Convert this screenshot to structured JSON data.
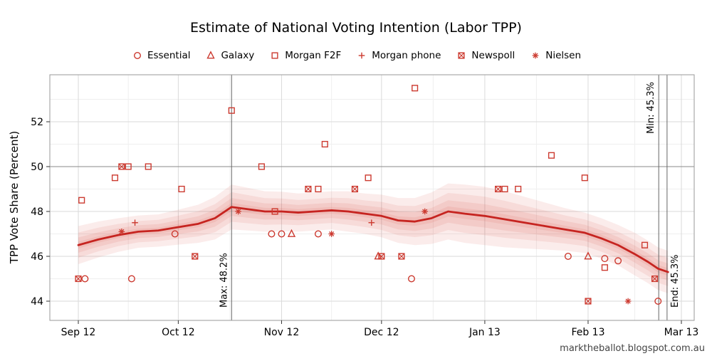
{
  "page": {
    "watermark": "marktheballot.blogspot.com.au"
  },
  "chart_data": {
    "type": "scatter",
    "title": "Estimate of National Voting Intention (Labor TPP)",
    "ylabel": "TPP Vote Share (Percent)",
    "x_axis": {
      "tick_labels": [
        "Sep 12",
        "Oct 12",
        "Nov 12",
        "Dec 12",
        "Jan 13",
        "Feb 13",
        "Mar 13"
      ],
      "tick_days": [
        0,
        30,
        61,
        91,
        122,
        153,
        181
      ],
      "minor_days": [
        15,
        45.5,
        76,
        106.5,
        137.5,
        167
      ]
    },
    "y_axis": {
      "ticks": [
        44,
        46,
        48,
        50,
        52
      ],
      "minor": [
        45,
        47,
        49,
        51,
        53
      ]
    },
    "reference_line_y": 50,
    "annotations": [
      {
        "day": 46,
        "label": "Max: 48.2%",
        "label_pos": "bottom-left"
      },
      {
        "day": 174.2,
        "label": "Min: 45.3%",
        "label_pos": "top-left"
      },
      {
        "day": 176.7,
        "label": "End: 45.3%",
        "label_pos": "bottom-right"
      }
    ],
    "trend": [
      [
        0,
        46.5,
        0.85
      ],
      [
        6,
        46.75,
        0.8
      ],
      [
        12,
        46.95,
        0.75
      ],
      [
        18,
        47.1,
        0.72
      ],
      [
        24,
        47.15,
        0.72
      ],
      [
        30,
        47.3,
        0.78
      ],
      [
        36,
        47.45,
        0.85
      ],
      [
        41,
        47.7,
        0.95
      ],
      [
        46,
        48.2,
        1.0
      ],
      [
        51,
        48.1,
        0.95
      ],
      [
        56,
        48.0,
        0.9
      ],
      [
        61,
        48.0,
        0.88
      ],
      [
        66,
        47.95,
        0.85
      ],
      [
        71,
        48.0,
        0.85
      ],
      [
        76,
        48.05,
        0.85
      ],
      [
        81,
        48.0,
        0.9
      ],
      [
        86,
        47.9,
        0.9
      ],
      [
        91,
        47.8,
        0.95
      ],
      [
        96,
        47.6,
        1.0
      ],
      [
        101,
        47.55,
        1.05
      ],
      [
        106,
        47.7,
        1.15
      ],
      [
        111,
        48.0,
        1.25
      ],
      [
        116,
        47.9,
        1.3
      ],
      [
        122,
        47.8,
        1.3
      ],
      [
        128,
        47.65,
        1.25
      ],
      [
        134,
        47.5,
        1.15
      ],
      [
        140,
        47.35,
        1.05
      ],
      [
        146,
        47.2,
        0.95
      ],
      [
        152,
        47.05,
        0.9
      ],
      [
        157,
        46.8,
        0.9
      ],
      [
        162,
        46.5,
        0.9
      ],
      [
        167,
        46.1,
        0.95
      ],
      [
        171,
        45.75,
        0.95
      ],
      [
        174,
        45.45,
        0.95
      ],
      [
        177,
        45.3,
        0.95
      ]
    ],
    "band_fractions": [
      1,
      0.66,
      0.4,
      0.18
    ],
    "series": [
      {
        "name": "Essential",
        "symbol": "circle",
        "points": [
          [
            2,
            45
          ],
          [
            16,
            45
          ],
          [
            29,
            47
          ],
          [
            58,
            47
          ],
          [
            61,
            47
          ],
          [
            72,
            47
          ],
          [
            100,
            45
          ],
          [
            147,
            46
          ],
          [
            158,
            45.9
          ],
          [
            162,
            45.8
          ],
          [
            174,
            44
          ]
        ]
      },
      {
        "name": "Galaxy",
        "symbol": "triangle",
        "points": [
          [
            64,
            47
          ],
          [
            90,
            46
          ],
          [
            153,
            46
          ]
        ]
      },
      {
        "name": "Morgan F2F",
        "symbol": "square",
        "points": [
          [
            1,
            48.5
          ],
          [
            11,
            49.5
          ],
          [
            15,
            50
          ],
          [
            21,
            50
          ],
          [
            31,
            49
          ],
          [
            46,
            52.5
          ],
          [
            55,
            50
          ],
          [
            59,
            48
          ],
          [
            72,
            49
          ],
          [
            74,
            51
          ],
          [
            87,
            49.5
          ],
          [
            101,
            53.5
          ],
          [
            128,
            49
          ],
          [
            132,
            49
          ],
          [
            142,
            50.5
          ],
          [
            152,
            49.5
          ],
          [
            158,
            45.5
          ],
          [
            170,
            46.5
          ]
        ]
      },
      {
        "name": "Morgan phone",
        "symbol": "plus",
        "points": [
          [
            17,
            47.5
          ],
          [
            88,
            47.5
          ]
        ]
      },
      {
        "name": "Newspoll",
        "symbol": "square-x",
        "points": [
          [
            0,
            45
          ],
          [
            13,
            50
          ],
          [
            35,
            46
          ],
          [
            69,
            49
          ],
          [
            83,
            49
          ],
          [
            91,
            46
          ],
          [
            97,
            46
          ],
          [
            126,
            49
          ],
          [
            153,
            44
          ],
          [
            173,
            45
          ]
        ]
      },
      {
        "name": "Nielsen",
        "symbol": "asterisk",
        "points": [
          [
            13,
            47.1
          ],
          [
            48,
            48
          ],
          [
            76,
            47
          ],
          [
            104,
            48
          ],
          [
            165,
            44
          ]
        ]
      }
    ],
    "colors": {
      "point": "#cc3a30",
      "trend": "#c62420",
      "band": "#d4473d",
      "grid_major": "#dadada",
      "grid_minor": "#efefef",
      "ref_line": "#8a8a8a",
      "annotation_line": "#666666",
      "panel_border": "#9a9a9a",
      "tick": "#333333",
      "axis_text": "#000000"
    }
  }
}
